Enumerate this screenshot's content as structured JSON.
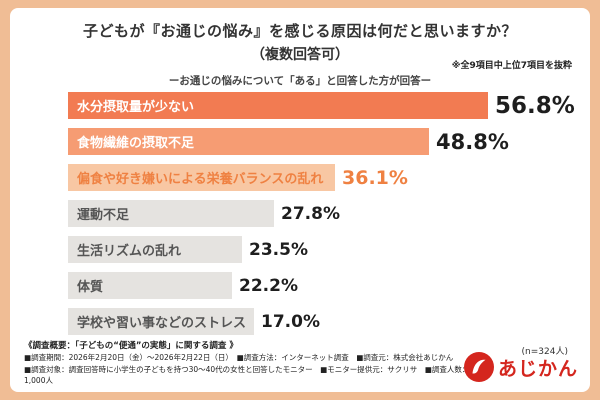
{
  "colors": {
    "background": "#F0BD95",
    "card": "#FFFFFF",
    "accent_red": "#D4261E",
    "accent_orange": "#EF8142"
  },
  "header": {
    "title": "子どもが『お通じの悩み』を感じる原因は何だと思いますか？",
    "title_sub": "（複数回答可）",
    "note": "※全9項目中上位7項目を抜粋",
    "subtitle": "ーお通じの悩みについて「ある」と回答した方が回答ー"
  },
  "chart_data": {
    "type": "bar",
    "orientation": "horizontal",
    "title": "子どもが『お通じの悩み』を感じる原因は何だと思いますか？（複数回答可）",
    "categories": [
      "水分摂取量が少ない",
      "食物繊維の摂取不足",
      "偏食や好き嫌いによる栄養バランスの乱れ",
      "運動不足",
      "生活リズムの乱れ",
      "体質",
      "学校や習い事などのストレス"
    ],
    "values": [
      56.8,
      48.8,
      36.1,
      27.8,
      23.5,
      22.2,
      17.0
    ],
    "value_labels": [
      "56.8%",
      "48.8%",
      "36.1%",
      "27.8%",
      "23.5%",
      "22.2%",
      "17.0%"
    ],
    "bar_colors": [
      "#F27B52",
      "#F69C73",
      "#F8C7A3",
      "#E5E3E0",
      "#E5E3E0",
      "#E5E3E0",
      "#E5E3E0"
    ],
    "label_colors": [
      "#FFFFFF",
      "#FFFFFF",
      "#EF8142",
      "#555555",
      "#555555",
      "#555555",
      "#555555"
    ],
    "value_colors": [
      "#1E1E1E",
      "#1E1E1E",
      "#EF8142",
      "#1E1E1E",
      "#1E1E1E",
      "#1E1E1E",
      "#1E1E1E"
    ],
    "xlim": [
      0,
      60
    ],
    "grid": false,
    "legend": false,
    "sample_note": "(n=324人)"
  },
  "footer": {
    "summary": "《調査概要：「子どもの“便通”の実態」に関する調査 》",
    "line1": "■調査期間：2026年2月20日（金）～2026年2月22日（日）　■調査方法：インターネット調査　■調査元：株式会社あじかん",
    "line2": "■調査対象：調査回答時に小学生の子どもを持つ30～40代の女性と回答したモニター　■モニター提供元：サクリサ　■調査人数：1,000人",
    "logo_text": "あじかん"
  }
}
